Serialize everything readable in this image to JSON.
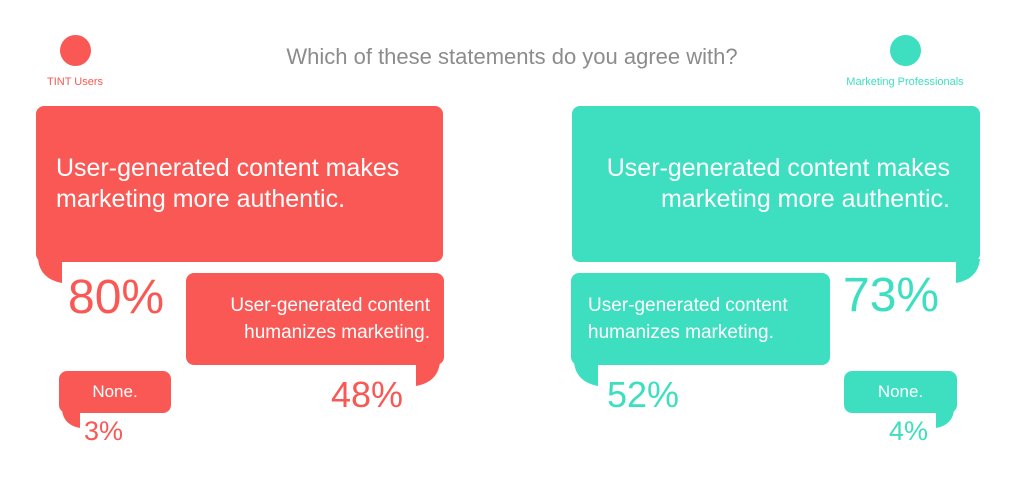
{
  "title": "Which of these statements do you agree with?",
  "colors": {
    "tint_users": "#fa5854",
    "marketing_professionals": "#3ddfc0",
    "title": "#8c8c8c"
  },
  "legend": [
    {
      "label": "TINT Users",
      "color": "#fa5854"
    },
    {
      "label": "Marketing Professionals",
      "color": "#3ddfc0"
    }
  ],
  "chart_data": {
    "type": "table",
    "title": "Which of these statements do you agree with?",
    "categories": [
      "User-generated content makes marketing more authentic.",
      "User-generated content humanizes marketing.",
      "None."
    ],
    "series": [
      {
        "name": "TINT Users",
        "values": [
          80,
          48,
          3
        ]
      },
      {
        "name": "Marketing Professionals",
        "values": [
          73,
          52,
          4
        ]
      }
    ],
    "unit": "%"
  },
  "left": {
    "authentic": {
      "line1": "User-generated content makes",
      "line2": "marketing more authentic.",
      "pct": "80%"
    },
    "humanizes": {
      "line1": "User-generated content",
      "line2": "humanizes marketing.",
      "pct": "48%"
    },
    "none": {
      "label": "None.",
      "pct": "3%"
    }
  },
  "right": {
    "authentic": {
      "line1": "User-generated content makes",
      "line2": "marketing more authentic.",
      "pct": "73%"
    },
    "humanizes": {
      "line1": "User-generated content",
      "line2": "humanizes marketing.",
      "pct": "52%"
    },
    "none": {
      "label": "None.",
      "pct": "4%"
    }
  }
}
